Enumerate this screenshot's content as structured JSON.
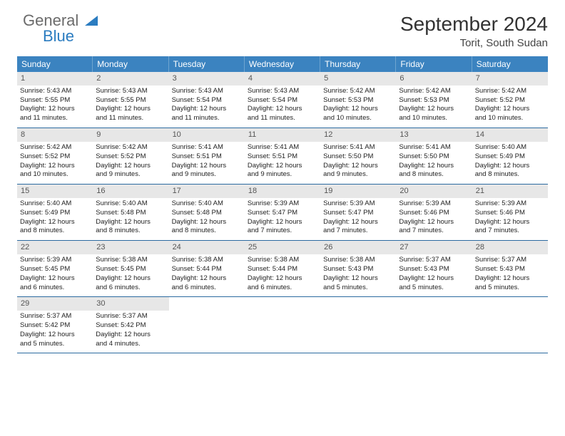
{
  "logo": {
    "line1": "General",
    "line2": "Blue"
  },
  "title": "September 2024",
  "location": "Torit, South Sudan",
  "colors": {
    "header_bg": "#3b83c0",
    "header_fg": "#ffffff",
    "daynum_bg": "#e7e7e7",
    "daynum_fg": "#555555",
    "rule": "#2b6aa0",
    "text": "#222222",
    "logo_gray": "#6b6b6b",
    "logo_blue": "#2b7cc0"
  },
  "weekdays": [
    "Sunday",
    "Monday",
    "Tuesday",
    "Wednesday",
    "Thursday",
    "Friday",
    "Saturday"
  ],
  "weeks": [
    [
      {
        "n": "1",
        "sunrise": "Sunrise: 5:43 AM",
        "sunset": "Sunset: 5:55 PM",
        "dl1": "Daylight: 12 hours",
        "dl2": "and 11 minutes."
      },
      {
        "n": "2",
        "sunrise": "Sunrise: 5:43 AM",
        "sunset": "Sunset: 5:55 PM",
        "dl1": "Daylight: 12 hours",
        "dl2": "and 11 minutes."
      },
      {
        "n": "3",
        "sunrise": "Sunrise: 5:43 AM",
        "sunset": "Sunset: 5:54 PM",
        "dl1": "Daylight: 12 hours",
        "dl2": "and 11 minutes."
      },
      {
        "n": "4",
        "sunrise": "Sunrise: 5:43 AM",
        "sunset": "Sunset: 5:54 PM",
        "dl1": "Daylight: 12 hours",
        "dl2": "and 11 minutes."
      },
      {
        "n": "5",
        "sunrise": "Sunrise: 5:42 AM",
        "sunset": "Sunset: 5:53 PM",
        "dl1": "Daylight: 12 hours",
        "dl2": "and 10 minutes."
      },
      {
        "n": "6",
        "sunrise": "Sunrise: 5:42 AM",
        "sunset": "Sunset: 5:53 PM",
        "dl1": "Daylight: 12 hours",
        "dl2": "and 10 minutes."
      },
      {
        "n": "7",
        "sunrise": "Sunrise: 5:42 AM",
        "sunset": "Sunset: 5:52 PM",
        "dl1": "Daylight: 12 hours",
        "dl2": "and 10 minutes."
      }
    ],
    [
      {
        "n": "8",
        "sunrise": "Sunrise: 5:42 AM",
        "sunset": "Sunset: 5:52 PM",
        "dl1": "Daylight: 12 hours",
        "dl2": "and 10 minutes."
      },
      {
        "n": "9",
        "sunrise": "Sunrise: 5:42 AM",
        "sunset": "Sunset: 5:52 PM",
        "dl1": "Daylight: 12 hours",
        "dl2": "and 9 minutes."
      },
      {
        "n": "10",
        "sunrise": "Sunrise: 5:41 AM",
        "sunset": "Sunset: 5:51 PM",
        "dl1": "Daylight: 12 hours",
        "dl2": "and 9 minutes."
      },
      {
        "n": "11",
        "sunrise": "Sunrise: 5:41 AM",
        "sunset": "Sunset: 5:51 PM",
        "dl1": "Daylight: 12 hours",
        "dl2": "and 9 minutes."
      },
      {
        "n": "12",
        "sunrise": "Sunrise: 5:41 AM",
        "sunset": "Sunset: 5:50 PM",
        "dl1": "Daylight: 12 hours",
        "dl2": "and 9 minutes."
      },
      {
        "n": "13",
        "sunrise": "Sunrise: 5:41 AM",
        "sunset": "Sunset: 5:50 PM",
        "dl1": "Daylight: 12 hours",
        "dl2": "and 8 minutes."
      },
      {
        "n": "14",
        "sunrise": "Sunrise: 5:40 AM",
        "sunset": "Sunset: 5:49 PM",
        "dl1": "Daylight: 12 hours",
        "dl2": "and 8 minutes."
      }
    ],
    [
      {
        "n": "15",
        "sunrise": "Sunrise: 5:40 AM",
        "sunset": "Sunset: 5:49 PM",
        "dl1": "Daylight: 12 hours",
        "dl2": "and 8 minutes."
      },
      {
        "n": "16",
        "sunrise": "Sunrise: 5:40 AM",
        "sunset": "Sunset: 5:48 PM",
        "dl1": "Daylight: 12 hours",
        "dl2": "and 8 minutes."
      },
      {
        "n": "17",
        "sunrise": "Sunrise: 5:40 AM",
        "sunset": "Sunset: 5:48 PM",
        "dl1": "Daylight: 12 hours",
        "dl2": "and 8 minutes."
      },
      {
        "n": "18",
        "sunrise": "Sunrise: 5:39 AM",
        "sunset": "Sunset: 5:47 PM",
        "dl1": "Daylight: 12 hours",
        "dl2": "and 7 minutes."
      },
      {
        "n": "19",
        "sunrise": "Sunrise: 5:39 AM",
        "sunset": "Sunset: 5:47 PM",
        "dl1": "Daylight: 12 hours",
        "dl2": "and 7 minutes."
      },
      {
        "n": "20",
        "sunrise": "Sunrise: 5:39 AM",
        "sunset": "Sunset: 5:46 PM",
        "dl1": "Daylight: 12 hours",
        "dl2": "and 7 minutes."
      },
      {
        "n": "21",
        "sunrise": "Sunrise: 5:39 AM",
        "sunset": "Sunset: 5:46 PM",
        "dl1": "Daylight: 12 hours",
        "dl2": "and 7 minutes."
      }
    ],
    [
      {
        "n": "22",
        "sunrise": "Sunrise: 5:39 AM",
        "sunset": "Sunset: 5:45 PM",
        "dl1": "Daylight: 12 hours",
        "dl2": "and 6 minutes."
      },
      {
        "n": "23",
        "sunrise": "Sunrise: 5:38 AM",
        "sunset": "Sunset: 5:45 PM",
        "dl1": "Daylight: 12 hours",
        "dl2": "and 6 minutes."
      },
      {
        "n": "24",
        "sunrise": "Sunrise: 5:38 AM",
        "sunset": "Sunset: 5:44 PM",
        "dl1": "Daylight: 12 hours",
        "dl2": "and 6 minutes."
      },
      {
        "n": "25",
        "sunrise": "Sunrise: 5:38 AM",
        "sunset": "Sunset: 5:44 PM",
        "dl1": "Daylight: 12 hours",
        "dl2": "and 6 minutes."
      },
      {
        "n": "26",
        "sunrise": "Sunrise: 5:38 AM",
        "sunset": "Sunset: 5:43 PM",
        "dl1": "Daylight: 12 hours",
        "dl2": "and 5 minutes."
      },
      {
        "n": "27",
        "sunrise": "Sunrise: 5:37 AM",
        "sunset": "Sunset: 5:43 PM",
        "dl1": "Daylight: 12 hours",
        "dl2": "and 5 minutes."
      },
      {
        "n": "28",
        "sunrise": "Sunrise: 5:37 AM",
        "sunset": "Sunset: 5:43 PM",
        "dl1": "Daylight: 12 hours",
        "dl2": "and 5 minutes."
      }
    ],
    [
      {
        "n": "29",
        "sunrise": "Sunrise: 5:37 AM",
        "sunset": "Sunset: 5:42 PM",
        "dl1": "Daylight: 12 hours",
        "dl2": "and 5 minutes."
      },
      {
        "n": "30",
        "sunrise": "Sunrise: 5:37 AM",
        "sunset": "Sunset: 5:42 PM",
        "dl1": "Daylight: 12 hours",
        "dl2": "and 4 minutes."
      },
      null,
      null,
      null,
      null,
      null
    ]
  ]
}
